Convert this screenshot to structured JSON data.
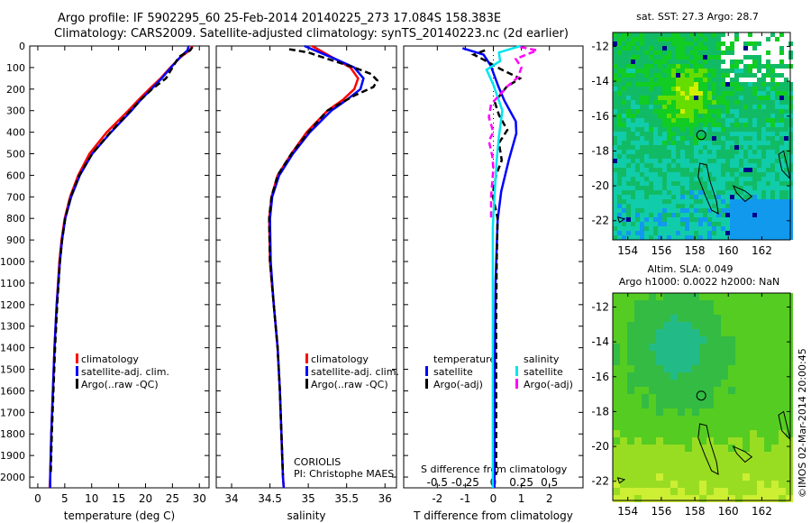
{
  "title_line1": "Argo profile: IF 5902295_60 25-Feb-2014 20140225_273 17.084S 158.383E",
  "title_line2": "Climatology: CARS2009. Satellite-adjusted climatology: synTS_20140223.nc (2d earlier)",
  "colors": {
    "climatology": "#ff0000",
    "satellite": "#0000ff",
    "argo": "#000000",
    "sal_satellite": "#00e5ee",
    "sal_argo": "#ff00ff"
  },
  "chart_data": [
    {
      "type": "line",
      "title": "",
      "xlabel": "temperature (deg C)",
      "ylabel": "",
      "xlim": [
        -1.5,
        31.8
      ],
      "ylim": [
        2050,
        0
      ],
      "xticks": [
        "0",
        "5",
        "10",
        "15",
        "20",
        "25",
        "30"
      ],
      "xtick_values": [
        0,
        5,
        10,
        15,
        20,
        25,
        30
      ],
      "yticks": [
        "0",
        "100",
        "200",
        "300",
        "400",
        "500",
        "600",
        "700",
        "800",
        "900",
        "1000",
        "1100",
        "1200",
        "1300",
        "1400",
        "1500",
        "1600",
        "1700",
        "1800",
        "1900",
        "2000"
      ],
      "legend": [
        "climatology",
        "satellite-adj. clim.",
        "Argo(..raw -QC)"
      ],
      "series": [
        {
          "name": "climatology",
          "color": "#ff0000",
          "dash": false,
          "depth": [
            0,
            20,
            50,
            100,
            150,
            200,
            250,
            300,
            400,
            500,
            600,
            700,
            800,
            900,
            1000,
            1200,
            1400,
            1600,
            1800,
            2000,
            2050
          ],
          "values": [
            28.7,
            28.2,
            26.6,
            24.6,
            22.8,
            20.7,
            18.7,
            16.8,
            12.8,
            9.6,
            7.5,
            6.0,
            5.0,
            4.4,
            4.0,
            3.5,
            3.1,
            2.8,
            2.5,
            2.3,
            2.2
          ]
        },
        {
          "name": "satellite-adj. clim.",
          "color": "#0000ff",
          "dash": false,
          "depth": [
            0,
            20,
            50,
            100,
            150,
            200,
            250,
            300,
            400,
            500,
            600,
            700,
            800,
            900,
            1000,
            1200,
            1400,
            1600,
            1800,
            2000,
            2050
          ],
          "values": [
            28.0,
            27.8,
            26.5,
            24.7,
            23.0,
            21.1,
            19.1,
            17.4,
            13.6,
            10.1,
            7.8,
            6.2,
            5.1,
            4.5,
            4.1,
            3.5,
            3.1,
            2.8,
            2.5,
            2.3,
            2.3
          ]
        },
        {
          "name": "Argo(..raw -QC)",
          "color": "#000000",
          "dash": true,
          "depth": [
            5,
            20,
            50,
            100,
            150,
            200,
            250,
            300,
            400,
            500,
            600,
            700,
            800,
            900,
            1000,
            1200,
            1400,
            1600,
            1800,
            1990
          ],
          "values": [
            28.7,
            28.3,
            26.2,
            25.0,
            23.8,
            21.2,
            19.1,
            17.2,
            13.5,
            10.1,
            7.7,
            6.1,
            5.1,
            4.5,
            4.1,
            3.6,
            3.2,
            2.9,
            2.6,
            2.4
          ]
        }
      ]
    },
    {
      "type": "line",
      "xlabel": "salinity",
      "xlim": [
        33.8,
        36.15
      ],
      "ylim": [
        2050,
        0
      ],
      "xticks": [
        "34",
        "34.5",
        "35",
        "35.5",
        "36"
      ],
      "xtick_values": [
        34,
        34.5,
        35,
        35.5,
        36
      ],
      "legend": [
        "climatology",
        "satellite-adj. clim.",
        "Argo(..raw -QC)"
      ],
      "annotation": [
        "CORIOLIS",
        "PI: Christophe MAES"
      ],
      "series": [
        {
          "name": "climatology",
          "color": "#ff0000",
          "dash": false,
          "depth": [
            0,
            30,
            60,
            100,
            150,
            200,
            250,
            300,
            400,
            500,
            600,
            700,
            800,
            1000,
            1200,
            1400,
            1600,
            1800,
            2000,
            2050
          ],
          "values": [
            35.05,
            35.2,
            35.35,
            35.55,
            35.65,
            35.6,
            35.45,
            35.25,
            34.98,
            34.78,
            34.6,
            34.52,
            34.49,
            34.5,
            34.55,
            34.6,
            34.63,
            34.65,
            34.67,
            34.68
          ]
        },
        {
          "name": "satellite-adj. clim.",
          "color": "#0000ff",
          "dash": false,
          "depth": [
            0,
            30,
            60,
            100,
            150,
            200,
            250,
            300,
            400,
            500,
            600,
            700,
            800,
            1000,
            1200,
            1400,
            1600,
            1800,
            2000,
            2050
          ],
          "values": [
            34.95,
            35.15,
            35.35,
            35.6,
            35.72,
            35.68,
            35.5,
            35.3,
            35.02,
            34.8,
            34.62,
            34.53,
            34.5,
            34.51,
            34.55,
            34.6,
            34.63,
            34.65,
            34.67,
            34.68
          ]
        },
        {
          "name": "Argo(..raw -QC)",
          "color": "#000000",
          "dash": true,
          "depth": [
            15,
            30,
            60,
            100,
            130,
            160,
            190,
            230,
            270,
            300,
            400,
            500,
            600,
            700,
            800,
            1000,
            1200,
            1400,
            1600,
            1800,
            1990
          ],
          "values": [
            34.75,
            35.0,
            35.25,
            35.6,
            35.82,
            35.9,
            35.85,
            35.6,
            35.4,
            35.25,
            35.0,
            34.78,
            34.6,
            34.52,
            34.49,
            34.5,
            34.55,
            34.6,
            34.63,
            34.65,
            34.67
          ]
        }
      ]
    },
    {
      "type": "line",
      "xlabel": "T difference from climatology",
      "xlabel_top": "S difference from climatology",
      "xlim": [
        -3.2,
        3.2
      ],
      "ylim": [
        2050,
        0
      ],
      "xticks": [
        "-2",
        "-1",
        "0",
        "1",
        "2"
      ],
      "xtick_values": [
        -2,
        -1,
        0,
        1,
        2
      ],
      "xticks_top": [
        "-0.5",
        "-0.25",
        "0",
        "0.25",
        "0.5"
      ],
      "xtick_values_top": [
        -0.5,
        -0.25,
        0,
        0.25,
        0.5
      ],
      "legend_temperature": {
        "title": "temperature",
        "items": [
          "satellite",
          "Argo(-adj)"
        ]
      },
      "legend_salinity": {
        "title": "salinity",
        "items": [
          "satellite",
          "Argo(-adj)"
        ]
      },
      "series": [
        {
          "name": "temperature satellite",
          "color": "#0000ff",
          "dash": false,
          "scale": "T",
          "depth": [
            10,
            40,
            90,
            185,
            255,
            350,
            405,
            530,
            675,
            810,
            1090,
            1500,
            2050
          ],
          "values": [
            -1.1,
            -0.35,
            -0.1,
            0.17,
            0.4,
            0.8,
            0.82,
            0.55,
            0.28,
            0.15,
            0.08,
            0.05,
            0.04
          ]
        },
        {
          "name": "temperature Argo(-adj)",
          "color": "#000000",
          "dash": true,
          "scale": "T",
          "depth": [
            20,
            40,
            60,
            110,
            150,
            190,
            260,
            320,
            390,
            450,
            530,
            600,
            690,
            800,
            1000,
            1300,
            1600,
            1990
          ],
          "values": [
            -0.3,
            -0.7,
            -0.4,
            0.3,
            0.95,
            0.47,
            0.05,
            0.2,
            0.5,
            0.2,
            0.3,
            0.1,
            -0.03,
            0.15,
            0.12,
            0.1,
            0.1,
            0.1
          ]
        },
        {
          "name": "salinity satellite",
          "color": "#00e5ee",
          "dash": false,
          "scale": "S",
          "depth": [
            0,
            30,
            70,
            110,
            180,
            300,
            420,
            530,
            700,
            840,
            1000,
            1500,
            2050
          ],
          "values": [
            0.24,
            0.05,
            0.06,
            -0.06,
            0,
            0.08,
            0.05,
            0.03,
            0.01,
            -0.005,
            -0.005,
            -0.005,
            -0.005
          ]
        },
        {
          "name": "salinity Argo(-adj)",
          "color": "#ff00ff",
          "dash": true,
          "scale": "S",
          "depth": [
            5,
            20,
            60,
            100,
            145,
            185,
            270,
            330,
            400,
            440,
            510,
            570,
            630,
            700,
            800
          ],
          "values": [
            0.24,
            0.39,
            0.2,
            0.25,
            0.22,
            0.13,
            -0.02,
            -0.04,
            0,
            -0.04,
            -0.01,
            0,
            -0.01,
            -0.02,
            -0.02
          ]
        }
      ],
      "zero_line": "dotted"
    }
  ],
  "maps": [
    {
      "title": "sat. SST: 27.3 Argo: 28.7",
      "lon_ticks": [
        "154",
        "156",
        "158",
        "160",
        "162"
      ],
      "lat_ticks": [
        "-12",
        "-14",
        "-16",
        "-18",
        "-20",
        "-22"
      ],
      "argo_position": [
        158.383,
        -17.084
      ]
    },
    {
      "title_line1": "Altim. SLA: 0.049",
      "title_line2": "Argo h1000: 0.0022 h2000: NaN",
      "lon_ticks": [
        "154",
        "156",
        "158",
        "160",
        "162"
      ],
      "lat_ticks": [
        "-12",
        "-14",
        "-16",
        "-18",
        "-20",
        "-22"
      ],
      "argo_position": [
        158.383,
        -17.084
      ]
    }
  ],
  "side_label": "©IMOS 02-Mar-2014 20:00:45"
}
